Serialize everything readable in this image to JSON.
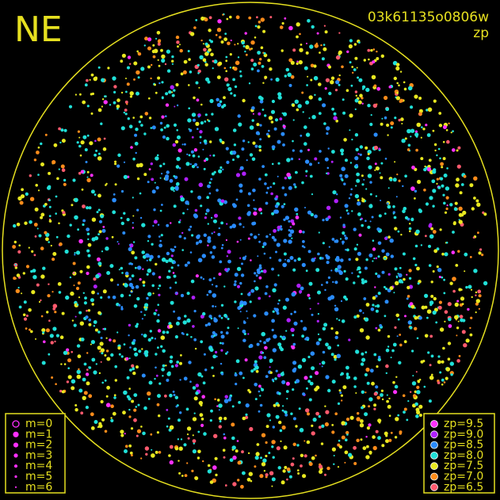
{
  "title": "NE",
  "frame_id": "03k61135o0806w",
  "color_key": "zp",
  "magnitude_legend": [
    {
      "label": "m=0"
    },
    {
      "label": "m=1"
    },
    {
      "label": "m=2"
    },
    {
      "label": "m=3"
    },
    {
      "label": "m=4"
    },
    {
      "label": "m=5"
    },
    {
      "label": "m=6"
    }
  ],
  "zp_legend": [
    {
      "label": "zp=9.5",
      "color": "#ff30ff"
    },
    {
      "label": "zp=9.0",
      "color": "#b020ff"
    },
    {
      "label": "zp=8.5",
      "color": "#2a8cff"
    },
    {
      "label": "zp=8.0",
      "color": "#20e0d8"
    },
    {
      "label": "zp=7.5",
      "color": "#e8e820"
    },
    {
      "label": "zp=7.0",
      "color": "#ff8c1a"
    },
    {
      "label": "zp=6.5",
      "color": "#ff5a6e"
    }
  ]
}
